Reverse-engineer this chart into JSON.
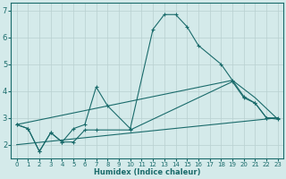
{
  "xlabel": "Humidex (Indice chaleur)",
  "bg_color": "#d4eaea",
  "grid_color": "#b8d0d0",
  "line_color": "#1a6b6b",
  "xlim": [
    -0.5,
    23.5
  ],
  "ylim": [
    1.5,
    7.3
  ],
  "yticks": [
    2,
    3,
    4,
    5,
    6,
    7
  ],
  "xticks": [
    0,
    1,
    2,
    3,
    4,
    5,
    6,
    7,
    8,
    9,
    10,
    11,
    12,
    13,
    14,
    15,
    16,
    17,
    18,
    19,
    20,
    21,
    22,
    23
  ],
  "series": [
    {
      "x": [
        0,
        1,
        2,
        3,
        4,
        5,
        6,
        7,
        8,
        10,
        12,
        13,
        14,
        15,
        16,
        18,
        19,
        20,
        21,
        22,
        23
      ],
      "y": [
        2.75,
        2.6,
        1.75,
        2.45,
        2.1,
        2.6,
        2.75,
        4.15,
        3.45,
        2.6,
        6.3,
        6.85,
        6.85,
        6.4,
        5.7,
        5.0,
        4.4,
        3.8,
        3.55,
        3.0,
        3.0
      ],
      "with_markers": true
    },
    {
      "x": [
        0,
        1,
        2,
        3,
        4,
        5,
        6,
        7,
        10,
        19,
        20,
        21,
        22,
        23
      ],
      "y": [
        2.75,
        2.6,
        1.75,
        2.45,
        2.1,
        2.1,
        2.55,
        2.55,
        2.55,
        4.35,
        3.75,
        3.55,
        3.0,
        2.95
      ],
      "with_markers": true
    },
    {
      "x": [
        0,
        23
      ],
      "y": [
        2.0,
        3.0
      ],
      "with_markers": false
    },
    {
      "x": [
        0,
        19,
        21,
        23
      ],
      "y": [
        2.75,
        4.4,
        3.75,
        2.95
      ],
      "with_markers": false
    }
  ]
}
